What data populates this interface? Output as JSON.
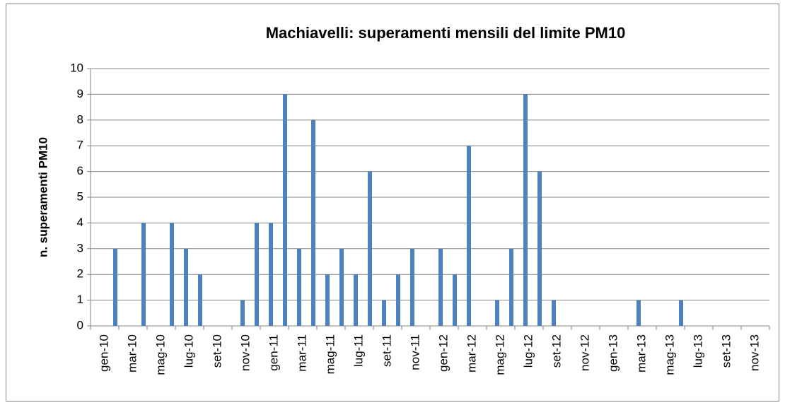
{
  "chart_data": {
    "type": "bar",
    "title": "Machiavelli: superamenti mensili del limite PM10",
    "y_label": "n. superamenti PM10",
    "categories": [
      "gen-10",
      null,
      "mar-10",
      null,
      "mag-10",
      null,
      "lug-10",
      null,
      "set-10",
      null,
      "nov-10",
      null,
      "gen-11",
      null,
      "mar-11",
      null,
      "mag-11",
      null,
      "lug-11",
      null,
      "set-11",
      null,
      "nov-11",
      null,
      "gen-12",
      null,
      "mar-12",
      null,
      "mag-12",
      null,
      "lug-12",
      null,
      "set-12",
      null,
      "nov-12",
      null,
      "gen-13",
      null,
      "mar-13",
      null,
      "mag-13",
      null,
      "lug-13",
      null,
      "set-13",
      null,
      "nov-13",
      null
    ],
    "values": [
      0,
      3,
      0,
      4,
      0,
      4,
      3,
      2,
      0,
      0,
      1,
      4,
      4,
      9,
      3,
      8,
      2,
      3,
      2,
      6,
      1,
      2,
      3,
      0,
      3,
      2,
      7,
      0,
      1,
      3,
      9,
      6,
      1,
      0,
      0,
      0,
      0,
      0,
      1,
      0,
      0,
      1,
      0,
      0,
      0,
      0,
      0,
      0
    ],
    "color": "#4f81bd",
    "ylim": [
      0,
      10
    ],
    "yticks": [
      0,
      1,
      2,
      3,
      4,
      5,
      6,
      7,
      8,
      9,
      10
    ],
    "grid": true
  }
}
